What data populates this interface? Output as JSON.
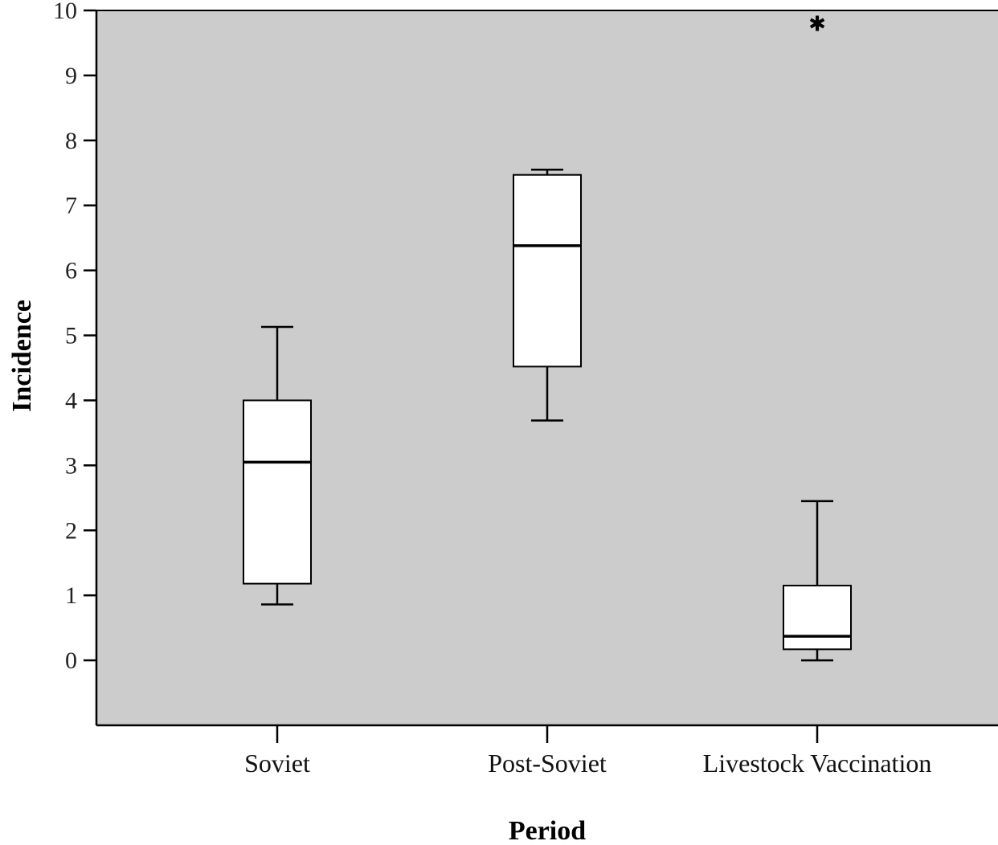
{
  "chart_data": {
    "type": "box",
    "xlabel": "Period",
    "ylabel": "Incidence",
    "ylim": [
      -1,
      10
    ],
    "yticks": [
      "0",
      "1",
      "2",
      "3",
      "4",
      "5",
      "6",
      "7",
      "8",
      "9",
      "10"
    ],
    "grid": false,
    "colors": {
      "plot_background": "#cccccc",
      "box_fill": "#ffffff",
      "stroke": "#000000"
    },
    "categories": [
      "Soviet",
      "Post-Soviet",
      "Livestock Vaccination"
    ],
    "boxes": [
      {
        "category": "Soviet",
        "whisker_low": 0.86,
        "q1": 1.18,
        "median": 3.05,
        "q3": 4.0,
        "whisker_high": 5.13,
        "outliers": []
      },
      {
        "category": "Post-Soviet",
        "whisker_low": 3.69,
        "q1": 4.52,
        "median": 6.38,
        "q3": 7.47,
        "whisker_high": 7.55,
        "outliers": []
      },
      {
        "category": "Livestock Vaccination",
        "whisker_low": 0.0,
        "q1": 0.17,
        "median": 0.37,
        "q3": 1.15,
        "whisker_high": 2.45,
        "outliers": [
          9.82
        ]
      }
    ]
  }
}
